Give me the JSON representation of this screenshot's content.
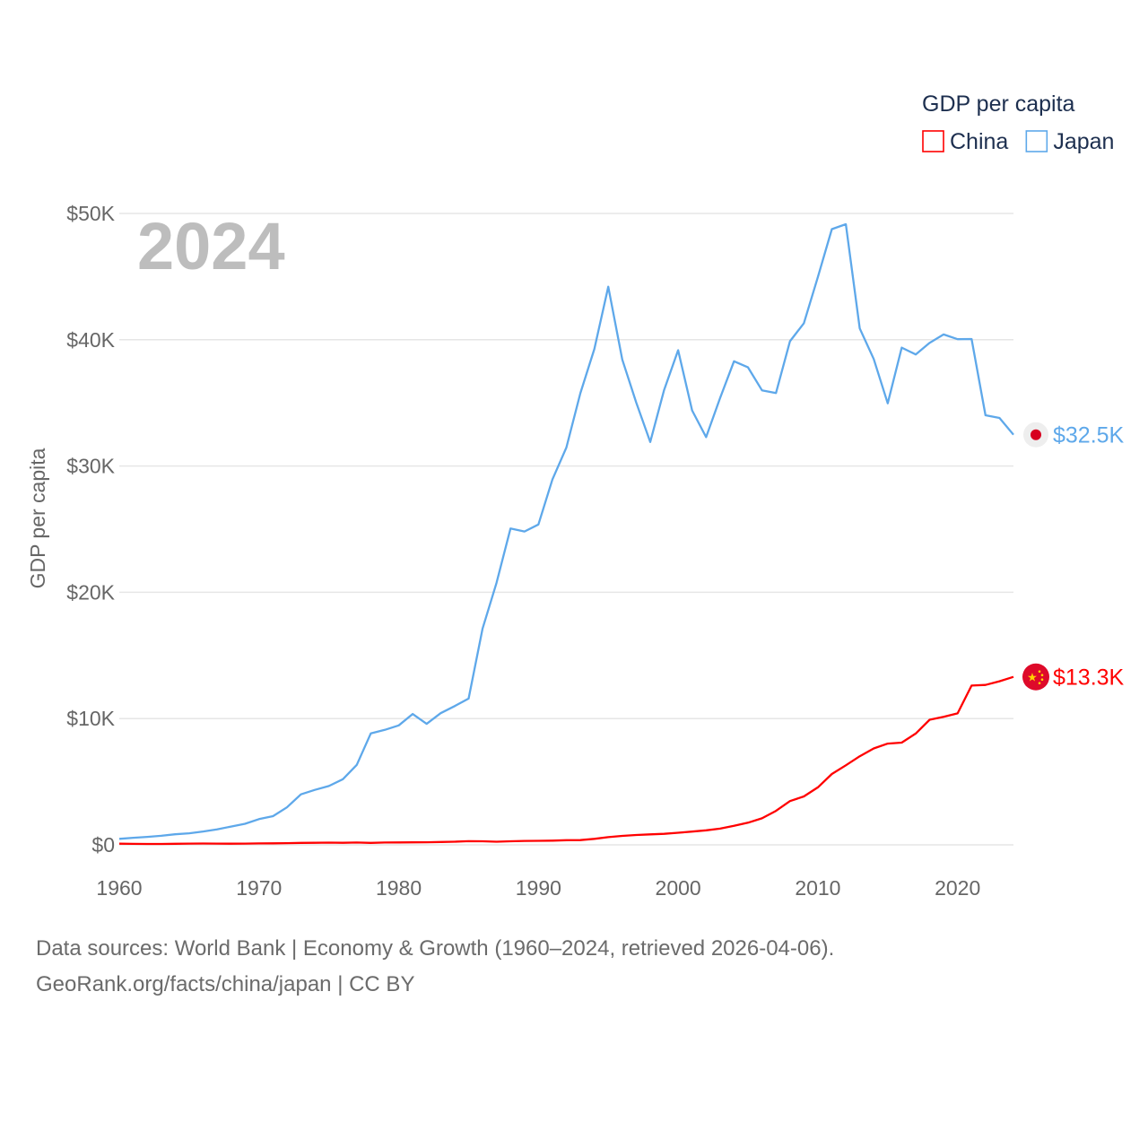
{
  "chart_data": {
    "type": "line",
    "title": "GDP per capita",
    "year_label": "2024",
    "ylabel": "GDP per capita",
    "xlabel": "",
    "xlim": [
      1960,
      2024
    ],
    "ylim": [
      0,
      50000
    ],
    "yticks": [
      0,
      10000,
      20000,
      30000,
      40000,
      50000
    ],
    "ytick_labels": [
      "$0",
      "$10K",
      "$20K",
      "$30K",
      "$40K",
      "$50K"
    ],
    "xticks": [
      1960,
      1970,
      1980,
      1990,
      2000,
      2010,
      2020
    ],
    "xtick_labels": [
      "1960",
      "1970",
      "1980",
      "1990",
      "2000",
      "2010",
      "2020"
    ],
    "grid": true,
    "legend_position": "top-right",
    "x": [
      1960,
      1961,
      1962,
      1963,
      1964,
      1965,
      1966,
      1967,
      1968,
      1969,
      1970,
      1971,
      1972,
      1973,
      1974,
      1975,
      1976,
      1977,
      1978,
      1979,
      1980,
      1981,
      1982,
      1983,
      1984,
      1985,
      1986,
      1987,
      1988,
      1989,
      1990,
      1991,
      1992,
      1993,
      1994,
      1995,
      1996,
      1997,
      1998,
      1999,
      2000,
      2001,
      2002,
      2003,
      2004,
      2005,
      2006,
      2007,
      2008,
      2009,
      2010,
      2011,
      2012,
      2013,
      2014,
      2015,
      2016,
      2017,
      2018,
      2019,
      2020,
      2021,
      2022,
      2023,
      2024
    ],
    "series": [
      {
        "name": "China",
        "color": "#ff0000",
        "end_label": "$13.3K",
        "flag": "china-flag",
        "values": [
          90,
          76,
          70,
          74,
          85,
          98,
          104,
          97,
          91,
          100,
          113,
          119,
          132,
          157,
          160,
          178,
          165,
          185,
          156,
          184,
          195,
          197,
          203,
          225,
          251,
          294,
          282,
          252,
          284,
          311,
          318,
          333,
          366,
          377,
          473,
          610,
          709,
          782,
          829,
          873,
          959,
          1053,
          1149,
          1289,
          1509,
          1753,
          2099,
          2694,
          3468,
          3832,
          4550,
          5614,
          6301,
          7020,
          7636,
          8016,
          8094,
          8817,
          9905,
          10144,
          10409,
          12617,
          12663,
          12951,
          13303
        ]
      },
      {
        "name": "Japan",
        "color": "#5ea8ea",
        "end_label": "$32.5K",
        "flag": "japan-flag",
        "values": [
          479,
          564,
          634,
          718,
          835,
          919,
          1059,
          1229,
          1451,
          1669,
          2038,
          2272,
          2967,
          3997,
          4354,
          4659,
          5198,
          6335,
          8821,
          9105,
          9463,
          10361,
          9578,
          10425,
          10984,
          11585,
          17112,
          20745,
          25052,
          24813,
          25371,
          28925,
          31465,
          35766,
          39269,
          44198,
          38437,
          35022,
          31903,
          36027,
          39169,
          34406,
          32289,
          35387,
          38299,
          37813,
          35991,
          35779,
          39876,
          41309,
          44968,
          48760,
          49145,
          40898,
          38475,
          34961,
          39375,
          38834,
          39751,
          40416,
          40040,
          40059,
          34017,
          33806,
          32476
        ]
      }
    ]
  },
  "footer": {
    "line1": "Data sources: World Bank | Economy & Growth (1960–2024, retrieved 2026-04-06).",
    "line2": "GeoRank.org/facts/china/japan | CC BY"
  }
}
